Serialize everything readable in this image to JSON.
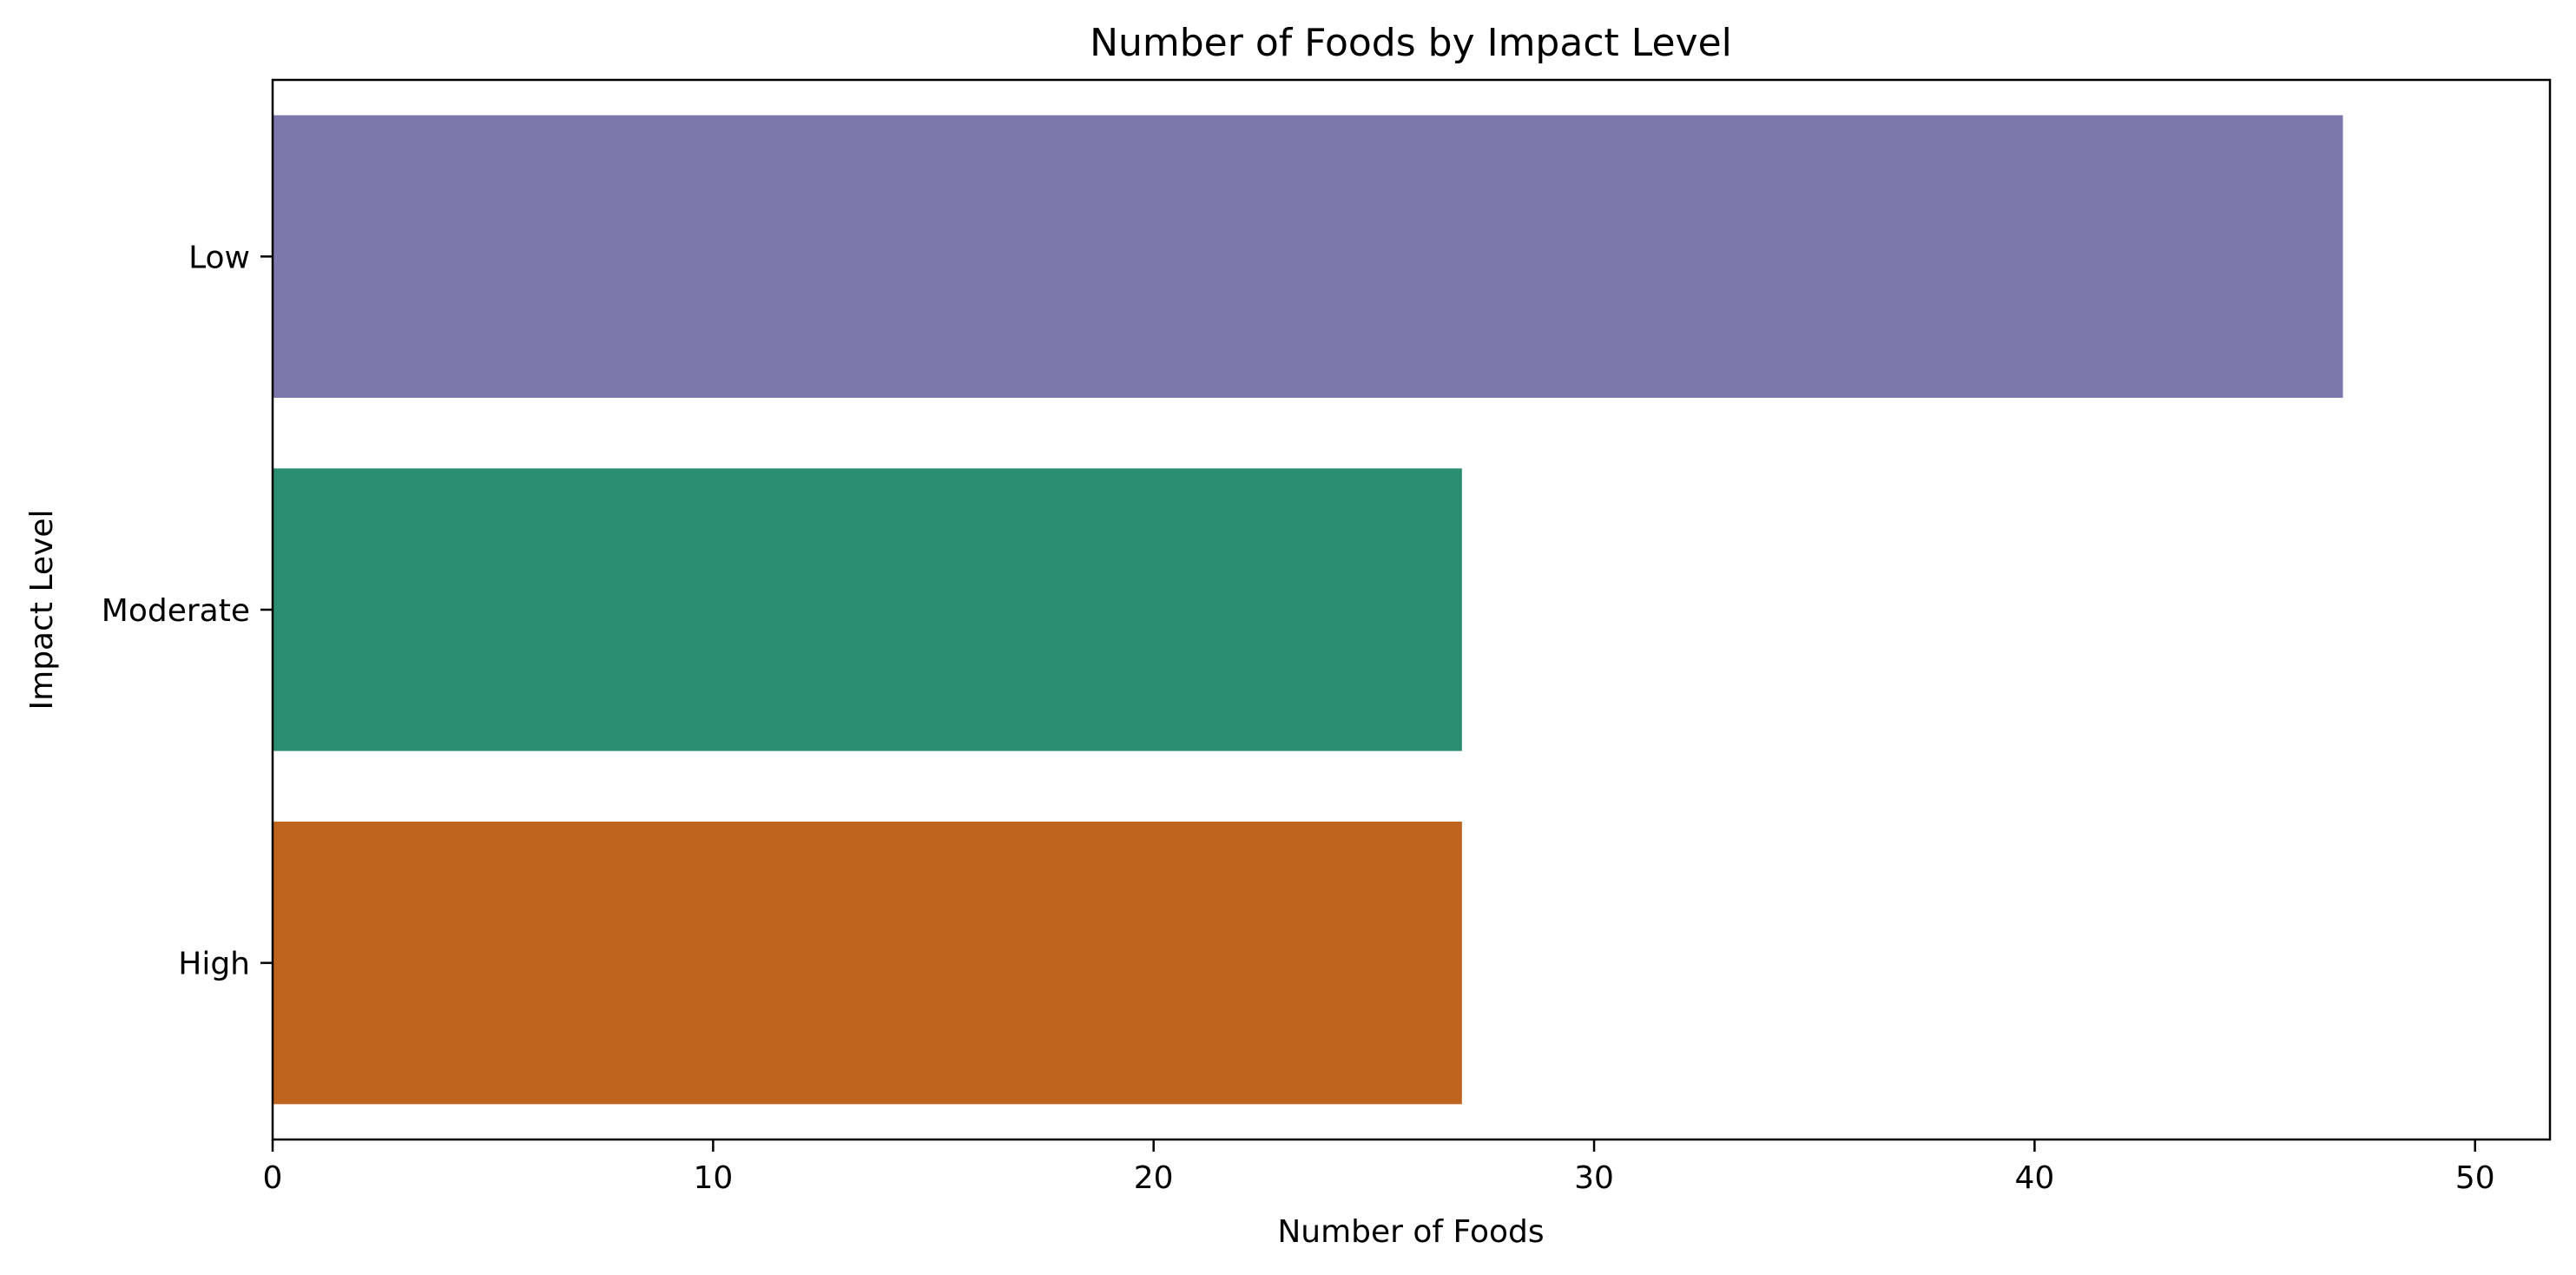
{
  "chart_data": {
    "type": "bar",
    "orientation": "horizontal",
    "title": "Number of Foods by Impact Level",
    "xlabel": "Number of Foods",
    "ylabel": "Impact Level",
    "categories": [
      "Low",
      "Moderate",
      "High"
    ],
    "values": [
      47,
      27,
      27
    ],
    "colors": [
      "#7b78ab",
      "#2c8e71",
      "#be641e"
    ],
    "xlim": [
      0,
      51.7
    ],
    "xticks": [
      0,
      10,
      20,
      30,
      40,
      50
    ],
    "xtick_labels": [
      "0",
      "10",
      "20",
      "30",
      "40",
      "50"
    ],
    "grid": false,
    "legend": "none"
  }
}
